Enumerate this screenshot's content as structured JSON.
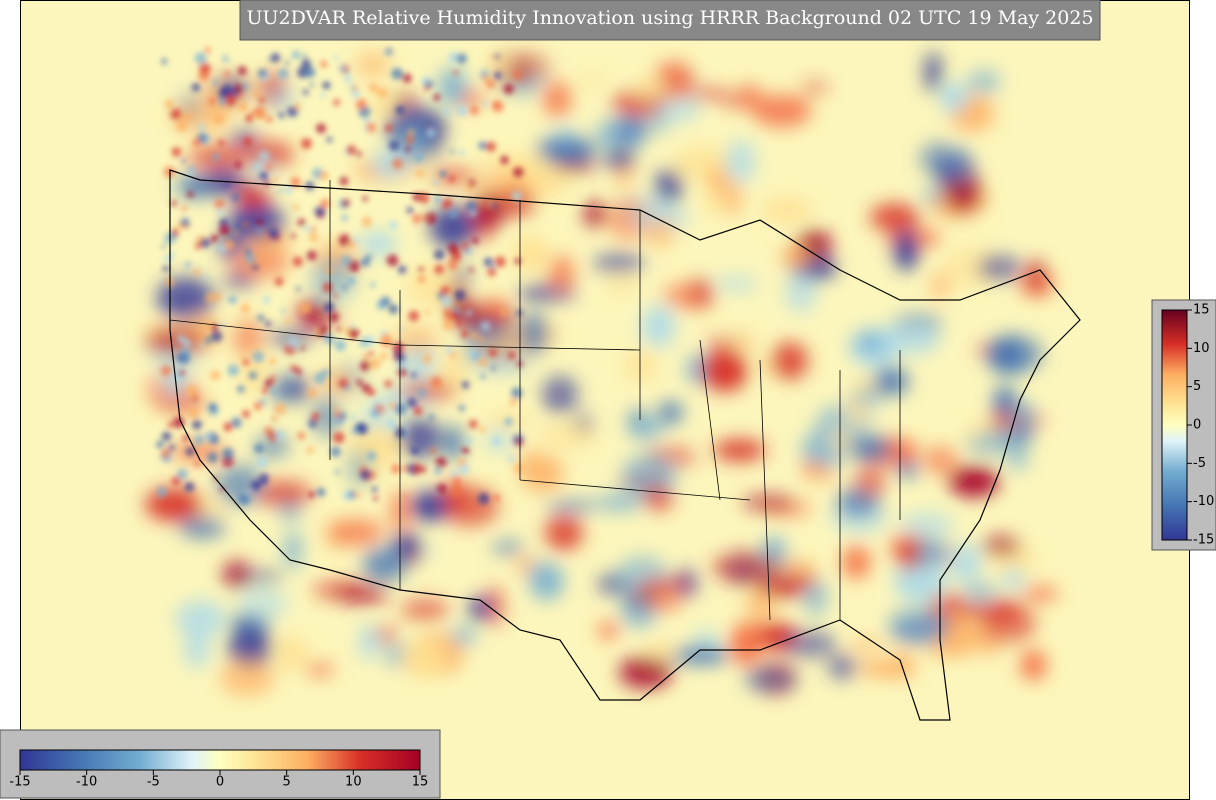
{
  "title": "UU2DVAR Relative Humidity Innovation using HRRR Background 02 UTC 19 May 2025",
  "colorbar_right": {
    "range": [
      -15,
      15
    ],
    "ticks": [
      15,
      10,
      5,
      0,
      -5,
      -10,
      -15
    ]
  },
  "colorbar_bottom": {
    "range": [
      -15,
      15
    ],
    "ticks": [
      -15,
      -10,
      -5,
      0,
      5,
      10,
      15
    ]
  }
}
